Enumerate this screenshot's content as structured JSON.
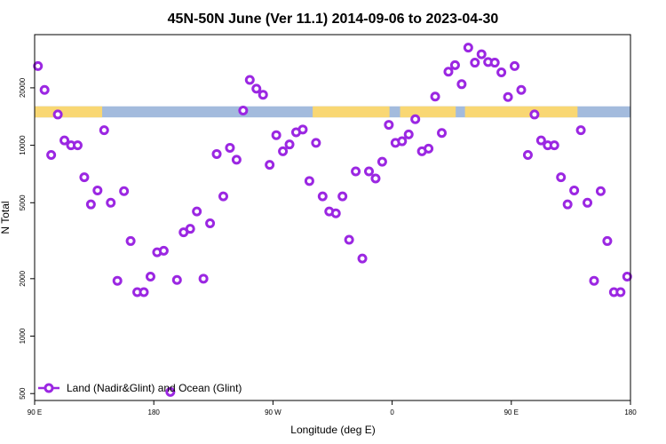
{
  "chart_data": {
    "type": "scatter",
    "title": "45N-50N June (Ver 11.1)   2014-09-06 to 2023-04-30",
    "xlabel": "Longitude (deg E)",
    "ylabel": "N Total",
    "xlim": [
      0,
      450
    ],
    "ylim": [
      460,
      38000
    ],
    "yscale": "log",
    "x_ticks": [
      {
        "value": 0,
        "label": "90 E"
      },
      {
        "value": 90,
        "label": "180"
      },
      {
        "value": 180,
        "label": "90 W"
      },
      {
        "value": 270,
        "label": "0"
      },
      {
        "value": 360,
        "label": "90 E"
      },
      {
        "value": 450,
        "label": "180"
      }
    ],
    "y_ticks": [
      {
        "value": 500,
        "label": "500"
      },
      {
        "value": 1000,
        "label": "1000"
      },
      {
        "value": 2000,
        "label": "2000"
      },
      {
        "value": 5000,
        "label": "5000"
      },
      {
        "value": 10000,
        "label": "10000"
      },
      {
        "value": 20000,
        "label": "20000"
      }
    ],
    "band_y": [
      14000,
      16000
    ],
    "band_colors": {
      "ocean": "#a3bbdd",
      "land": "#f9d773"
    },
    "land_ranges": [
      [
        0,
        51
      ],
      [
        210,
        268
      ],
      [
        276,
        318
      ],
      [
        325,
        410
      ]
    ],
    "series": [
      {
        "name": "Land (Nadir&Glint) and Ocean (Glint)",
        "color": "#9b27e2",
        "points": [
          [
            2.5,
            26000
          ],
          [
            7.5,
            19500
          ],
          [
            12.5,
            8900
          ],
          [
            17.5,
            14500
          ],
          [
            22.5,
            10600
          ],
          [
            27.5,
            10000
          ],
          [
            32.5,
            10000
          ],
          [
            37.5,
            6800
          ],
          [
            42.5,
            4900
          ],
          [
            47.5,
            5800
          ],
          [
            52.5,
            12000
          ],
          [
            57.5,
            5000
          ],
          [
            62.5,
            1950
          ],
          [
            67.5,
            5750
          ],
          [
            72.5,
            3150
          ],
          [
            77.5,
            1700
          ],
          [
            82.5,
            1700
          ],
          [
            87.5,
            2050
          ],
          [
            92.5,
            2750
          ],
          [
            97.5,
            2800
          ],
          [
            102.5,
            510
          ],
          [
            107.5,
            1970
          ],
          [
            112.5,
            3500
          ],
          [
            117.5,
            3650
          ],
          [
            122.5,
            4500
          ],
          [
            127.5,
            2000
          ],
          [
            132.5,
            3900
          ],
          [
            137.5,
            9000
          ],
          [
            142.5,
            5400
          ],
          [
            147.5,
            9700
          ],
          [
            152.5,
            8400
          ],
          [
            157.5,
            15200
          ],
          [
            162.5,
            22000
          ],
          [
            167.5,
            19800
          ],
          [
            172.5,
            18400
          ],
          [
            177.5,
            7900
          ],
          [
            182.5,
            11300
          ],
          [
            187.5,
            9300
          ],
          [
            192.5,
            10100
          ],
          [
            197.5,
            11700
          ],
          [
            202.5,
            12100
          ],
          [
            207.5,
            6500
          ],
          [
            212.5,
            10300
          ],
          [
            217.5,
            5400
          ],
          [
            222.5,
            4500
          ],
          [
            227.5,
            4400
          ],
          [
            232.5,
            5400
          ],
          [
            237.5,
            3200
          ],
          [
            242.5,
            7300
          ],
          [
            247.5,
            2550
          ],
          [
            252.5,
            7300
          ],
          [
            257.5,
            6700
          ],
          [
            262.5,
            8200
          ],
          [
            267.5,
            12800
          ],
          [
            272.5,
            10300
          ],
          [
            277.5,
            10500
          ],
          [
            282.5,
            11400
          ],
          [
            287.5,
            13700
          ],
          [
            292.5,
            9300
          ],
          [
            297.5,
            9600
          ],
          [
            302.5,
            18000
          ],
          [
            307.5,
            11600
          ],
          [
            312.5,
            24300
          ],
          [
            317.5,
            26300
          ],
          [
            322.5,
            20900
          ],
          [
            327.5,
            32500
          ],
          [
            332.5,
            27100
          ],
          [
            337.5,
            30000
          ],
          [
            342.5,
            27300
          ],
          [
            347.5,
            27100
          ],
          [
            352.5,
            24100
          ],
          [
            357.5,
            17900
          ],
          [
            362.5,
            26000
          ],
          [
            367.5,
            19500
          ],
          [
            372.5,
            8900
          ],
          [
            377.5,
            14500
          ],
          [
            382.5,
            10600
          ],
          [
            387.5,
            10000
          ],
          [
            392.5,
            10000
          ],
          [
            397.5,
            6800
          ],
          [
            402.5,
            4900
          ],
          [
            407.5,
            5800
          ],
          [
            412.5,
            12000
          ],
          [
            417.5,
            5000
          ],
          [
            422.5,
            1950
          ],
          [
            427.5,
            5750
          ],
          [
            432.5,
            3150
          ],
          [
            437.5,
            1700
          ],
          [
            442.5,
            1700
          ],
          [
            447.5,
            2050
          ]
        ]
      }
    ],
    "legend": {
      "position": "bottom-left"
    }
  }
}
